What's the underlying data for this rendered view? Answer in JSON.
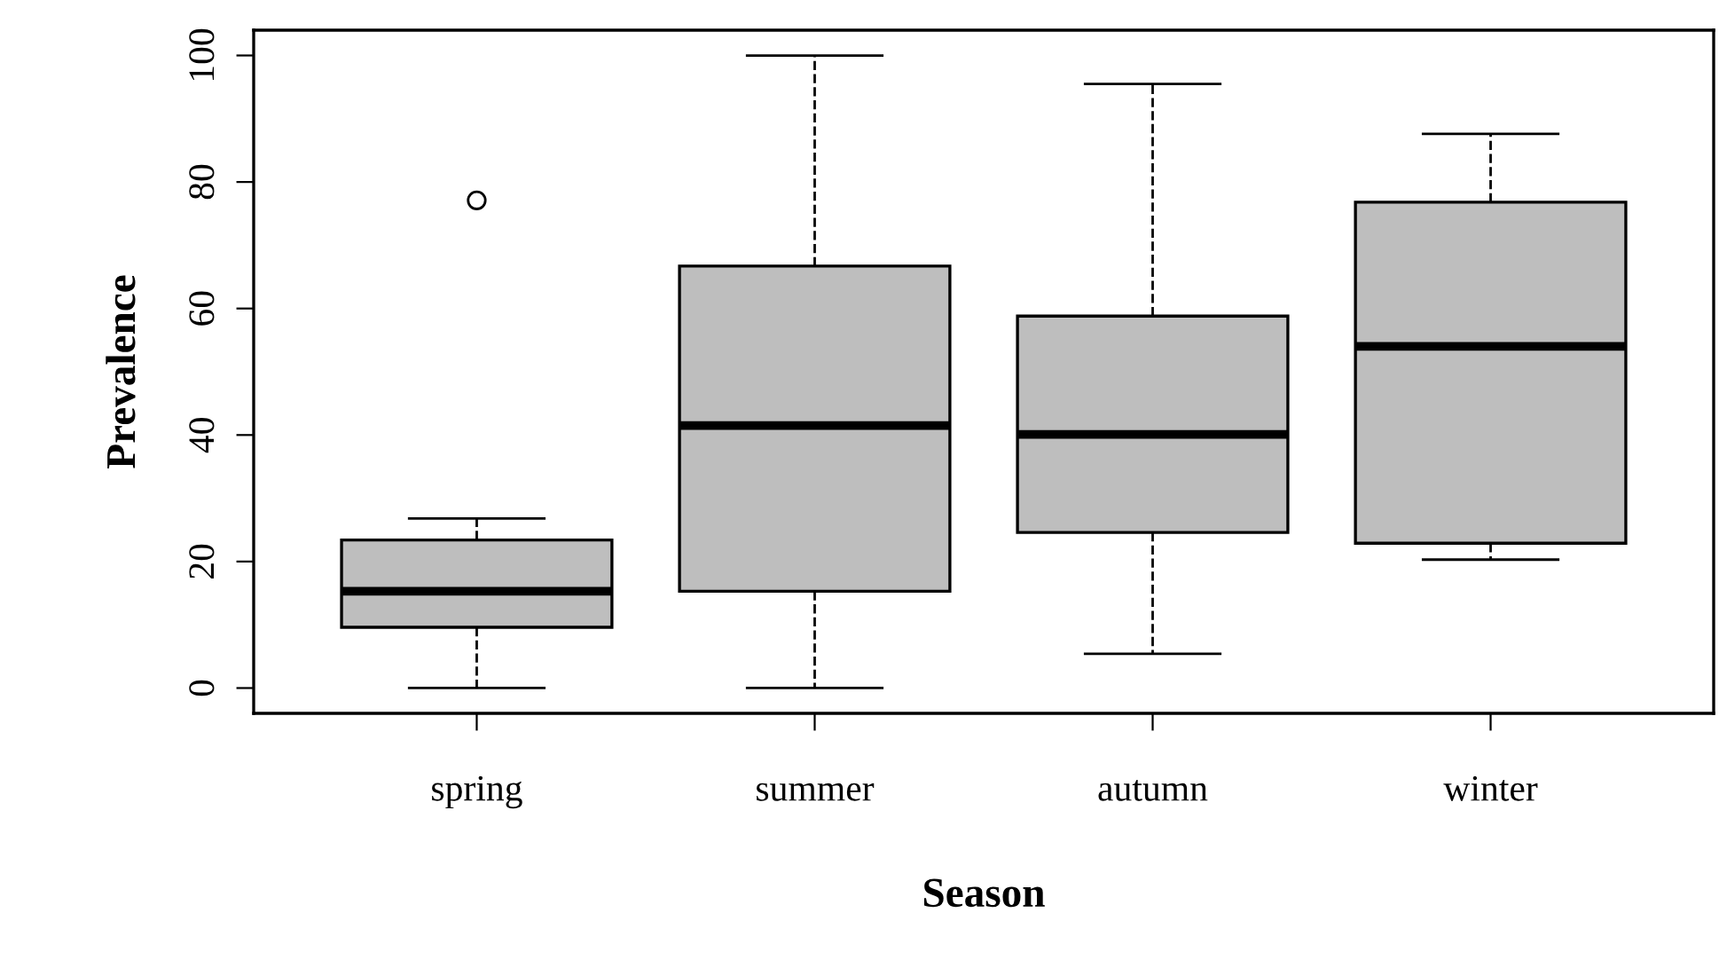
{
  "chart_data": {
    "type": "box",
    "xlabel": "Season",
    "ylabel": "Prevalence",
    "categories": [
      "spring",
      "summer",
      "autumn",
      "winter"
    ],
    "boxes": [
      {
        "low": 0,
        "q1": 9.6,
        "median": 15.3,
        "q3": 23.4,
        "high": 26.8,
        "outliers": [
          77.1
        ]
      },
      {
        "low": 0,
        "q1": 15.3,
        "median": 41.5,
        "q3": 66.7,
        "high": 100
      },
      {
        "low": 5.4,
        "q1": 24.6,
        "median": 40.1,
        "q3": 58.8,
        "high": 95.5
      },
      {
        "low": 20.3,
        "q1": 22.9,
        "median": 54,
        "q3": 76.8,
        "high": 87.6
      }
    ],
    "color": "#bebebe",
    "ylim": [
      -4,
      104
    ],
    "yticks": [
      0,
      20,
      40,
      60,
      80,
      100
    ],
    "grid": false,
    "line_style": "dashed"
  }
}
